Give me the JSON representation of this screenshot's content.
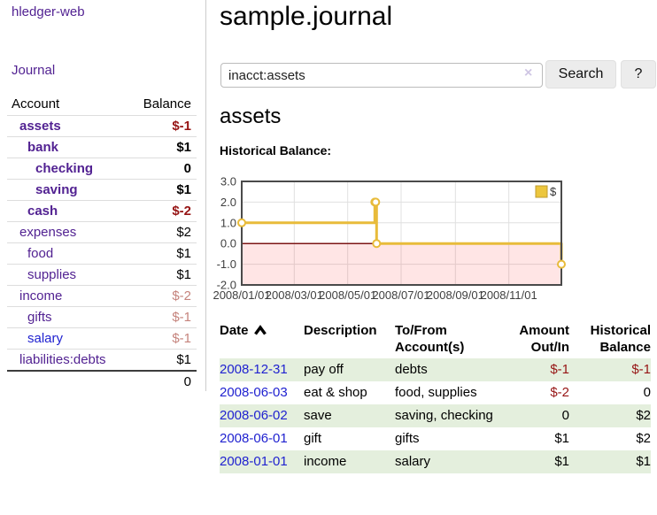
{
  "app": {
    "title": "hledger-web"
  },
  "sidebar": {
    "nav_journal": "Journal",
    "accounts": {
      "header_account": "Account",
      "header_balance": "Balance",
      "rows": [
        {
          "name": "assets",
          "balance": "$-1",
          "depth": 1,
          "bold": true,
          "blue": false
        },
        {
          "name": "bank",
          "balance": "$1",
          "depth": 2,
          "bold": true,
          "blue": false
        },
        {
          "name": "checking",
          "balance": "0",
          "depth": 3,
          "bold": true,
          "blue": false
        },
        {
          "name": "saving",
          "balance": "$1",
          "depth": 3,
          "bold": true,
          "blue": false
        },
        {
          "name": "cash",
          "balance": "$-2",
          "depth": 2,
          "bold": true,
          "blue": false
        },
        {
          "name": "expenses",
          "balance": "$2",
          "depth": 1,
          "bold": false,
          "blue": false
        },
        {
          "name": "food",
          "balance": "$1",
          "depth": 2,
          "bold": false,
          "blue": false
        },
        {
          "name": "supplies",
          "balance": "$1",
          "depth": 2,
          "bold": false,
          "blue": false
        },
        {
          "name": "income",
          "balance": "$-2",
          "depth": 1,
          "bold": false,
          "blue": false
        },
        {
          "name": "gifts",
          "balance": "$-1",
          "depth": 2,
          "bold": false,
          "blue": false
        },
        {
          "name": "salary",
          "balance": "$-1",
          "depth": 2,
          "bold": false,
          "blue": true
        },
        {
          "name": "liabilities:debts",
          "balance": "$1",
          "depth": 1,
          "bold": false,
          "blue": false
        }
      ],
      "total": "0"
    }
  },
  "header": {
    "title": "sample.journal"
  },
  "search": {
    "value": "inacct:assets",
    "clear_icon": "×",
    "button": "Search",
    "help_button": "?"
  },
  "icons": {
    "search_clear": "×",
    "sort_ascending": "chevron-up"
  },
  "register": {
    "heading": "assets",
    "chart_label": "Historical Balance:",
    "table": {
      "headers": [
        {
          "line1": "Date",
          "line2": ""
        },
        {
          "line1": "Description",
          "line2": ""
        },
        {
          "line1": "To/From",
          "line2": "Account(s)"
        },
        {
          "line1": "Amount",
          "line2": "Out/In"
        },
        {
          "line1": "Historical",
          "line2": "Balance"
        }
      ],
      "rows": [
        {
          "date": "2008-12-31",
          "description": "pay off",
          "accounts": "debts",
          "amount": "$-1",
          "balance": "$-1"
        },
        {
          "date": "2008-06-03",
          "description": "eat & shop",
          "accounts": "food, supplies",
          "amount": "$-2",
          "balance": "0"
        },
        {
          "date": "2008-06-02",
          "description": "save",
          "accounts": "saving, checking",
          "amount": "0",
          "balance": "$2"
        },
        {
          "date": "2008-06-01",
          "description": "gift",
          "accounts": "gifts",
          "amount": "$1",
          "balance": "$2"
        },
        {
          "date": "2008-01-01",
          "description": "income",
          "accounts": "salary",
          "amount": "$1",
          "balance": "$1"
        }
      ]
    }
  },
  "chart_data": {
    "type": "line",
    "style": "step",
    "title": "Historical Balance",
    "series": [
      {
        "name": "$",
        "color": "#e8bb3a",
        "points": [
          [
            "2008-01-01",
            1
          ],
          [
            "2008-06-01",
            2
          ],
          [
            "2008-06-02",
            2
          ],
          [
            "2008-06-03",
            0
          ],
          [
            "2008-12-31",
            -1
          ]
        ]
      }
    ],
    "xlim": [
      "2008-01-01",
      "2008-12-31"
    ],
    "ylim": [
      -2,
      3
    ],
    "x_ticks": [
      "2008/01/01",
      "2008/03/01",
      "2008/05/01",
      "2008/07/01",
      "2008/09/01",
      "2008/11/01"
    ],
    "y_ticks": [
      3.0,
      2.0,
      1.0,
      0.0,
      -1.0,
      -2.0
    ],
    "grid": true,
    "legend": {
      "label": "$",
      "position": "top-right",
      "swatch_color": "#ecc63d"
    },
    "negative_region_color": "rgba(255,0,0,0.10)",
    "zero_line_color": "#7d1616",
    "marker": {
      "shape": "circle-hollow",
      "fill": "#ffffff"
    }
  },
  "colors": {
    "link_purple": "#522292",
    "link_blue": "#2022d0",
    "negative_dark": "#961414",
    "negative_light": "#c5837c",
    "row_stripe_green": "#e4efdd",
    "chart_gold": "#e8bb3a",
    "chart_border": "#4a4a4a",
    "chart_grid": "#e0e0e0"
  }
}
